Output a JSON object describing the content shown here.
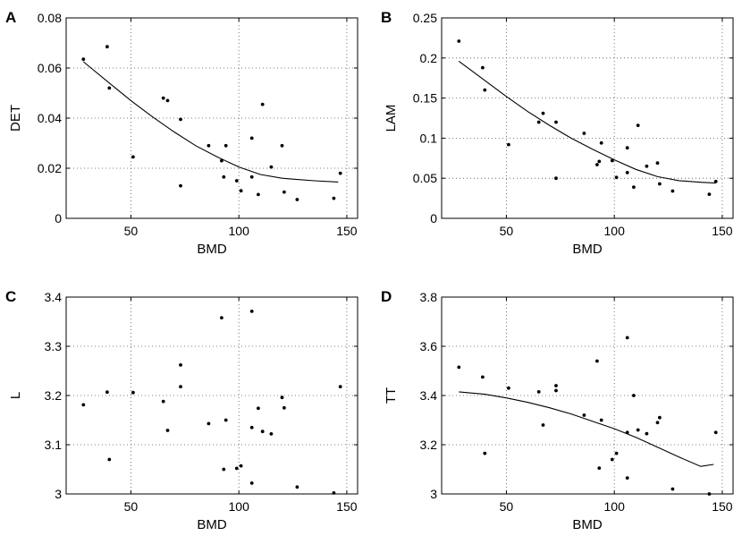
{
  "chart_data": [
    {
      "panel": "A",
      "type": "scatter",
      "xlabel": "BMD",
      "ylabel": "DET",
      "xlim": [
        20,
        155
      ],
      "ylim": [
        0,
        0.08
      ],
      "xticks": [
        50,
        100,
        150
      ],
      "xtick_labels": [
        "50",
        "100",
        "150"
      ],
      "yticks": [
        0,
        0.02,
        0.04,
        0.06,
        0.08
      ],
      "ytick_labels": [
        "0",
        "0.02",
        "0.04",
        "0.06",
        "0.08"
      ],
      "grid": true,
      "points": [
        [
          28,
          0.0635
        ],
        [
          39,
          0.0685
        ],
        [
          40,
          0.052
        ],
        [
          51,
          0.0245
        ],
        [
          65,
          0.048
        ],
        [
          67,
          0.047
        ],
        [
          73,
          0.0395
        ],
        [
          73,
          0.013
        ],
        [
          86,
          0.029
        ],
        [
          92,
          0.023
        ],
        [
          94,
          0.029
        ],
        [
          93,
          0.0165
        ],
        [
          99,
          0.015
        ],
        [
          101,
          0.011
        ],
        [
          106,
          0.032
        ],
        [
          106,
          0.0165
        ],
        [
          109,
          0.0095
        ],
        [
          111,
          0.0455
        ],
        [
          115,
          0.0205
        ],
        [
          120,
          0.029
        ],
        [
          121,
          0.0105
        ],
        [
          127,
          0.0075
        ],
        [
          144,
          0.008
        ],
        [
          147,
          0.018
        ]
      ],
      "fit": [
        [
          28,
          0.0625
        ],
        [
          40,
          0.054
        ],
        [
          50,
          0.047
        ],
        [
          60,
          0.0405
        ],
        [
          70,
          0.0345
        ],
        [
          80,
          0.029
        ],
        [
          90,
          0.0245
        ],
        [
          100,
          0.0205
        ],
        [
          110,
          0.0175
        ],
        [
          120,
          0.016
        ],
        [
          127,
          0.0155
        ],
        [
          135,
          0.015
        ],
        [
          146,
          0.0145
        ]
      ]
    },
    {
      "panel": "B",
      "type": "scatter",
      "xlabel": "BMD",
      "ylabel": "LAM",
      "xlim": [
        20,
        155
      ],
      "ylim": [
        0,
        0.25
      ],
      "xticks": [
        50,
        100,
        150
      ],
      "xtick_labels": [
        "50",
        "100",
        "150"
      ],
      "yticks": [
        0,
        0.05,
        0.1,
        0.15,
        0.2,
        0.25
      ],
      "ytick_labels": [
        "0",
        "0.05",
        "0.1",
        "0.15",
        "0.2",
        "0.25"
      ],
      "grid": true,
      "points": [
        [
          28,
          0.221
        ],
        [
          39,
          0.188
        ],
        [
          40,
          0.16
        ],
        [
          51,
          0.092
        ],
        [
          65,
          0.12
        ],
        [
          67,
          0.131
        ],
        [
          73,
          0.12
        ],
        [
          73,
          0.05
        ],
        [
          86,
          0.106
        ],
        [
          92,
          0.067
        ],
        [
          93,
          0.071
        ],
        [
          94,
          0.094
        ],
        [
          99,
          0.072
        ],
        [
          101,
          0.051
        ],
        [
          106,
          0.088
        ],
        [
          106,
          0.057
        ],
        [
          109,
          0.039
        ],
        [
          111,
          0.116
        ],
        [
          115,
          0.065
        ],
        [
          120,
          0.069
        ],
        [
          121,
          0.043
        ],
        [
          127,
          0.034
        ],
        [
          144,
          0.03
        ],
        [
          147,
          0.046
        ]
      ],
      "fit": [
        [
          28,
          0.196
        ],
        [
          40,
          0.172
        ],
        [
          50,
          0.152
        ],
        [
          60,
          0.133
        ],
        [
          70,
          0.116
        ],
        [
          80,
          0.1
        ],
        [
          90,
          0.086
        ],
        [
          100,
          0.073
        ],
        [
          110,
          0.061
        ],
        [
          120,
          0.052
        ],
        [
          130,
          0.047
        ],
        [
          140,
          0.045
        ],
        [
          147,
          0.044
        ]
      ]
    },
    {
      "panel": "C",
      "type": "scatter",
      "xlabel": "BMD",
      "ylabel": "L",
      "xlim": [
        20,
        155
      ],
      "ylim": [
        3,
        3.4
      ],
      "xticks": [
        50,
        100,
        150
      ],
      "xtick_labels": [
        "50",
        "100",
        "150"
      ],
      "yticks": [
        3,
        3.1,
        3.2,
        3.3,
        3.4
      ],
      "ytick_labels": [
        "3",
        "3.1",
        "3.2",
        "3.3",
        "3.4"
      ],
      "grid": true,
      "points": [
        [
          28,
          3.181
        ],
        [
          39,
          3.207
        ],
        [
          40,
          3.07
        ],
        [
          51,
          3.206
        ],
        [
          65,
          3.188
        ],
        [
          67,
          3.129
        ],
        [
          73,
          3.262
        ],
        [
          73,
          3.218
        ],
        [
          86,
          3.143
        ],
        [
          92,
          3.358
        ],
        [
          93,
          3.05
        ],
        [
          94,
          3.15
        ],
        [
          99,
          3.052
        ],
        [
          101,
          3.057
        ],
        [
          106,
          3.371
        ],
        [
          106,
          3.135
        ],
        [
          106,
          3.022
        ],
        [
          109,
          3.174
        ],
        [
          111,
          3.127
        ],
        [
          115,
          3.122
        ],
        [
          120,
          3.196
        ],
        [
          121,
          3.175
        ],
        [
          127,
          3.014
        ],
        [
          144,
          3.002
        ],
        [
          147,
          3.218
        ]
      ]
    },
    {
      "panel": "D",
      "type": "scatter",
      "xlabel": "BMD",
      "ylabel": "TT",
      "xlim": [
        20,
        155
      ],
      "ylim": [
        3,
        3.8
      ],
      "xticks": [
        50,
        100,
        150
      ],
      "xtick_labels": [
        "50",
        "100",
        "150"
      ],
      "yticks": [
        3,
        3.2,
        3.4,
        3.6,
        3.8
      ],
      "ytick_labels": [
        "3",
        "3.2",
        "3.4",
        "3.6",
        "3.8"
      ],
      "grid": true,
      "points": [
        [
          28,
          3.515
        ],
        [
          39,
          3.475
        ],
        [
          40,
          3.165
        ],
        [
          51,
          3.43
        ],
        [
          65,
          3.415
        ],
        [
          67,
          3.28
        ],
        [
          73,
          3.44
        ],
        [
          73,
          3.42
        ],
        [
          86,
          3.32
        ],
        [
          92,
          3.54
        ],
        [
          93,
          3.105
        ],
        [
          94,
          3.3
        ],
        [
          99,
          3.14
        ],
        [
          101,
          3.165
        ],
        [
          106,
          3.635
        ],
        [
          106,
          3.25
        ],
        [
          106,
          3.065
        ],
        [
          109,
          3.4
        ],
        [
          111,
          3.26
        ],
        [
          115,
          3.245
        ],
        [
          120,
          3.29
        ],
        [
          121,
          3.31
        ],
        [
          127,
          3.02
        ],
        [
          144,
          3.0
        ],
        [
          147,
          3.25
        ]
      ],
      "fit": [
        [
          28,
          3.415
        ],
        [
          40,
          3.405
        ],
        [
          50,
          3.39
        ],
        [
          60,
          3.372
        ],
        [
          70,
          3.35
        ],
        [
          80,
          3.325
        ],
        [
          90,
          3.295
        ],
        [
          100,
          3.265
        ],
        [
          110,
          3.23
        ],
        [
          120,
          3.19
        ],
        [
          130,
          3.15
        ],
        [
          140,
          3.112
        ],
        [
          146,
          3.12
        ]
      ]
    }
  ]
}
